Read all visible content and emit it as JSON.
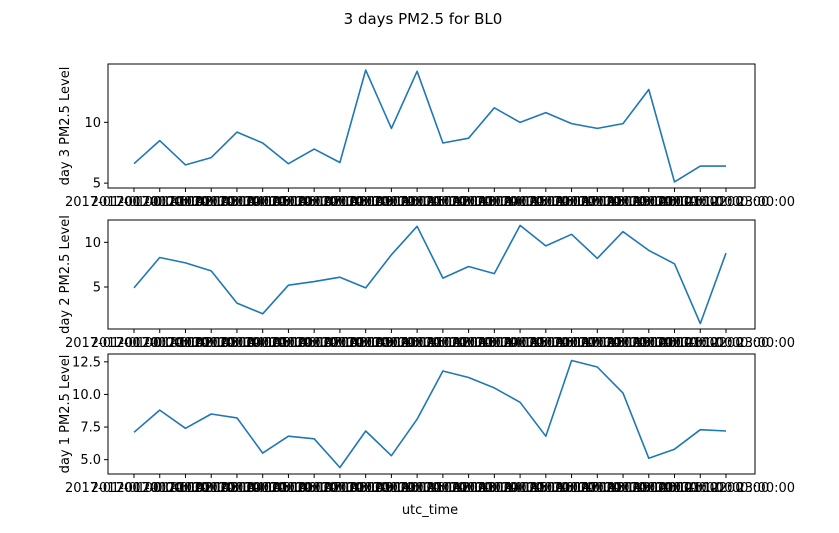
{
  "figure": {
    "title": "3 days PM2.5 for BL0",
    "xlabel": "utc_time"
  },
  "colors": {
    "line": "#1f77b4",
    "axes": "#000000",
    "background": "#ffffff"
  },
  "chart_data": [
    {
      "type": "line",
      "ylabel": "day 3 PM2.5 Level",
      "xtick_labels": [
        "2017-01-00 00:00:00",
        "2017-01-00 01:00:00",
        "2017-01-00 02:00:00",
        "2017-01-00 03:00:00",
        "2017-01-00 04:00:00",
        "2017-01-00 05:00:00",
        "2017-01-00 06:00:00",
        "2017-01-00 07:00:00",
        "2017-01-00 08:00:00",
        "2017-01-00 09:00:00",
        "2017-01-00 10:00:00",
        "2017-01-00 11:00:00",
        "2017-01-00 12:00:00",
        "2017-01-00 13:00:00",
        "2017-01-00 14:00:00",
        "2017-01-00 15:00:00",
        "2017-01-00 16:00:00",
        "2017-01-00 17:00:00",
        "2017-01-00 18:00:00",
        "2017-01-00 19:00:00",
        "2017-01-00 20:00:00",
        "2017-01-00 21:00:00",
        "2017-01-00 22:00:00",
        "2017-01-00 23:00:00"
      ],
      "values": [
        6.6,
        8.5,
        6.5,
        7.1,
        9.2,
        8.3,
        6.6,
        7.8,
        6.7,
        14.3,
        9.5,
        14.2,
        8.3,
        8.7,
        11.2,
        10.0,
        10.8,
        9.9,
        9.5,
        9.9,
        12.7,
        5.1,
        6.4,
        6.4
      ],
      "yticks": [
        5,
        10
      ],
      "ylim": [
        4.6,
        14.8
      ]
    },
    {
      "type": "line",
      "ylabel": "day 2 PM2.5 Level",
      "xtick_labels": [
        "2017-01-00 00:00:00",
        "2017-01-00 01:00:00",
        "2017-01-00 02:00:00",
        "2017-01-00 03:00:00",
        "2017-01-00 04:00:00",
        "2017-01-00 05:00:00",
        "2017-01-00 06:00:00",
        "2017-01-00 07:00:00",
        "2017-01-00 08:00:00",
        "2017-01-00 09:00:00",
        "2017-01-00 10:00:00",
        "2017-01-00 11:00:00",
        "2017-01-00 12:00:00",
        "2017-01-00 13:00:00",
        "2017-01-00 14:00:00",
        "2017-01-00 15:00:00",
        "2017-01-00 16:00:00",
        "2017-01-00 17:00:00",
        "2017-01-00 18:00:00",
        "2017-01-00 19:00:00",
        "2017-01-00 20:00:00",
        "2017-01-00 21:00:00",
        "2017-01-00 22:00:00",
        "2017-01-00 23:00:00"
      ],
      "values": [
        4.9,
        8.3,
        7.7,
        6.8,
        3.2,
        2.0,
        5.2,
        5.6,
        6.1,
        4.9,
        8.6,
        11.8,
        6.0,
        7.3,
        6.5,
        11.9,
        9.6,
        10.9,
        8.2,
        11.2,
        9.1,
        7.6,
        0.9,
        8.8
      ],
      "yticks": [
        5,
        10
      ],
      "ylim": [
        0.3,
        12.5
      ]
    },
    {
      "type": "line",
      "ylabel": "day 1 PM2.5 Level",
      "xtick_labels": [
        "2017-01-00 00:00:00",
        "2017-01-00 01:00:00",
        "2017-01-00 02:00:00",
        "2017-01-00 03:00:00",
        "2017-01-00 04:00:00",
        "2017-01-00 05:00:00",
        "2017-01-00 06:00:00",
        "2017-01-00 07:00:00",
        "2017-01-00 08:00:00",
        "2017-01-00 09:00:00",
        "2017-01-00 10:00:00",
        "2017-01-00 11:00:00",
        "2017-01-00 12:00:00",
        "2017-01-00 13:00:00",
        "2017-01-00 14:00:00",
        "2017-01-00 15:00:00",
        "2017-01-00 16:00:00",
        "2017-01-00 17:00:00",
        "2017-01-00 18:00:00",
        "2017-01-00 19:00:00",
        "2017-01-00 20:00:00",
        "2017-01-00 21:00:00",
        "2017-01-00 22:00:00",
        "2017-01-00 23:00:00"
      ],
      "values": [
        7.1,
        8.8,
        7.4,
        8.5,
        8.2,
        5.5,
        6.8,
        6.6,
        4.4,
        7.2,
        5.3,
        8.1,
        11.8,
        11.3,
        10.5,
        9.4,
        6.8,
        12.6,
        12.1,
        10.1,
        5.1,
        5.8,
        7.3,
        7.2
      ],
      "yticks": [
        5.0,
        7.5,
        10.0,
        12.5
      ],
      "ytick_labels": [
        "5.0",
        "7.5",
        "10.0",
        "12.5"
      ],
      "ylim": [
        3.9,
        13.1
      ]
    }
  ]
}
